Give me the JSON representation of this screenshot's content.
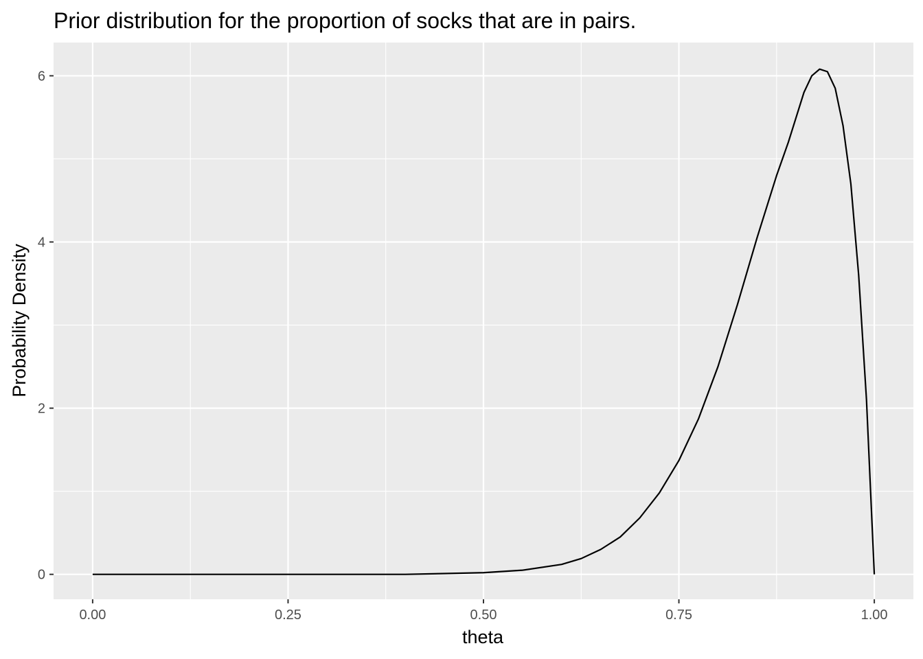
{
  "chart_data": {
    "type": "line",
    "title": "Prior distribution for the proportion of socks that are in pairs.",
    "xlabel": "theta",
    "ylabel": "Probability Density",
    "xlim": [
      -0.05,
      1.05
    ],
    "ylim": [
      -0.3,
      6.4
    ],
    "x_ticks": [
      0,
      0.25,
      0.5,
      0.75,
      1
    ],
    "x_tick_labels": [
      "0.00",
      "0.25",
      "0.50",
      "0.75",
      "1.00"
    ],
    "y_ticks": [
      0,
      2,
      4,
      6
    ],
    "y_tick_labels": [
      "0",
      "2",
      "4",
      "6"
    ],
    "grid": true,
    "background": "#ebebeb",
    "grid_color": "#ffffff",
    "line_color": "#000000",
    "series": [
      {
        "x": [
          0,
          0.1,
          0.2,
          0.3,
          0.4,
          0.45,
          0.5,
          0.55,
          0.6,
          0.625,
          0.65,
          0.675,
          0.7,
          0.725,
          0.75,
          0.775,
          0.8,
          0.825,
          0.85,
          0.875,
          0.89,
          0.9,
          0.91,
          0.92,
          0.93,
          0.94,
          0.95,
          0.96,
          0.97,
          0.98,
          0.99,
          1.0
        ],
        "y": [
          0,
          0,
          0,
          0,
          0.0,
          0.01,
          0.02,
          0.05,
          0.12,
          0.19,
          0.3,
          0.45,
          0.68,
          0.98,
          1.37,
          1.87,
          2.5,
          3.25,
          4.05,
          4.8,
          5.2,
          5.5,
          5.8,
          6.0,
          6.08,
          6.05,
          5.85,
          5.4,
          4.7,
          3.6,
          2.1,
          0
        ]
      }
    ]
  }
}
